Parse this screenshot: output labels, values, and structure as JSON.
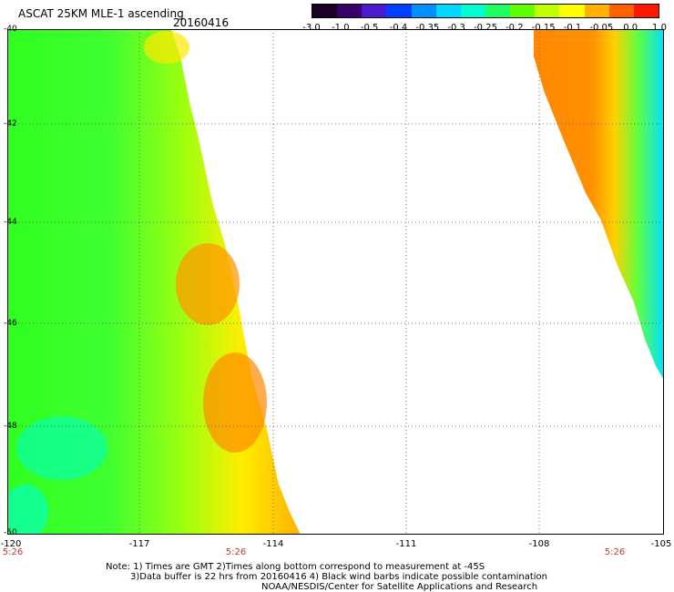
{
  "header": {
    "title": "ASCAT 25KM MLE-1 ascending",
    "date": "20160416"
  },
  "colorbar": {
    "labels": [
      "-3.0",
      "-1.0",
      "-0.5",
      "-0.4",
      "-0.35",
      "-0.3",
      "-0.25",
      "-0.2",
      "-0.15",
      "-0.1",
      "-0.05",
      "0.0",
      "1.0"
    ],
    "colors": [
      "#1a0022",
      "#3a006a",
      "#4a1ad0",
      "#0040ff",
      "#0090ff",
      "#00d8ff",
      "#00ffd0",
      "#20ff60",
      "#60ff00",
      "#c0ff00",
      "#ffff00",
      "#ffb000",
      "#ff6000",
      "#ff1800"
    ]
  },
  "axes": {
    "y_ticks": [
      "-40",
      "-42",
      "-44",
      "-46",
      "-48",
      "-50"
    ],
    "x_ticks": [
      "-120",
      "-117",
      "-114",
      "-111",
      "-108",
      "-105"
    ],
    "time_labels": [
      "5:26",
      "5:26",
      "5:26"
    ]
  },
  "notes": {
    "line1": "Note: 1) Times are GMT 2)Times along bottom correspond to measurement at -45S",
    "line2": "3)Data buffer is 22 hrs from 20160416 4) Black wind barbs indicate possible contamination",
    "line3": "NOAA/NESDIS/Center for Satellite Applications and Research"
  }
}
